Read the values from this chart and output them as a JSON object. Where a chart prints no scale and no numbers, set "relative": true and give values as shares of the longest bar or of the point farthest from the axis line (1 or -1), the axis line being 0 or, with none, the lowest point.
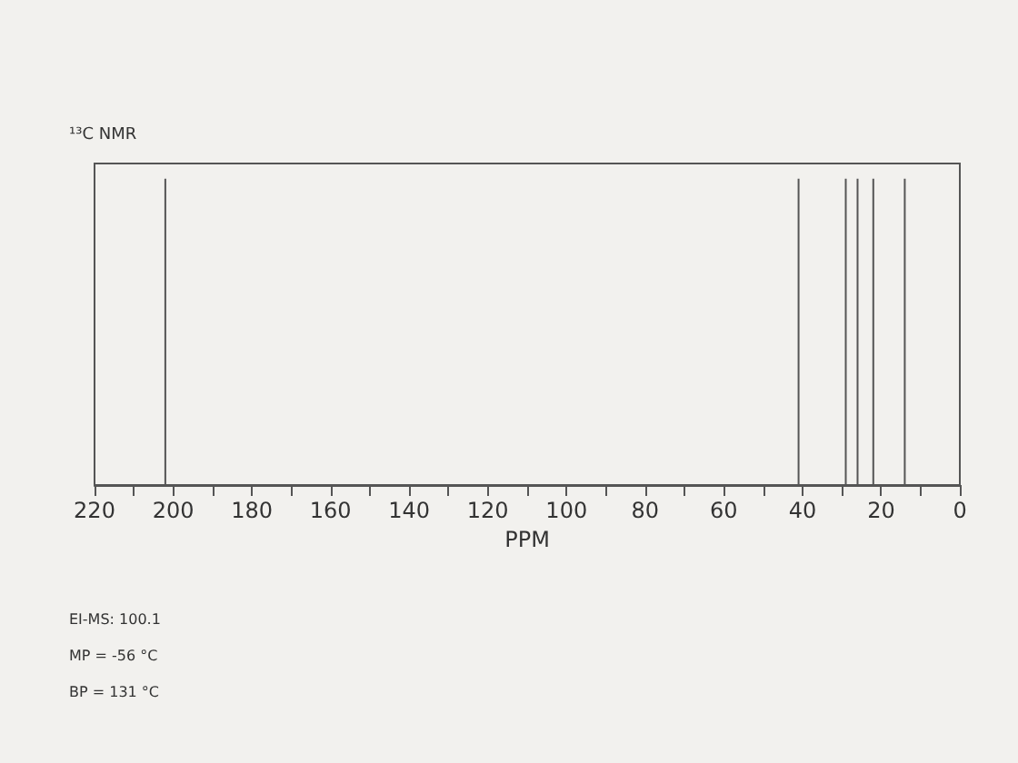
{
  "chart_data": {
    "type": "bar",
    "title": "¹³C NMR",
    "xlabel": "PPM",
    "x": [
      202,
      41,
      29,
      26,
      22,
      14
    ],
    "values": [
      1,
      1,
      1,
      1,
      1,
      1
    ],
    "relative": true,
    "color": "#555555",
    "xlim": [
      220,
      0
    ],
    "xticks": [
      220,
      {
        "value": 210,
        "label": null
      },
      200,
      {
        "value": 190,
        "label": null
      },
      180,
      {
        "value": 170,
        "label": null
      },
      160,
      {
        "value": 150,
        "label": null
      },
      140,
      {
        "value": 130,
        "label": null
      },
      120,
      {
        "value": 110,
        "label": null
      },
      100,
      {
        "value": 90,
        "label": null
      },
      80,
      {
        "value": 70,
        "label": null
      },
      60,
      {
        "value": 50,
        "label": null
      },
      40,
      {
        "value": 30,
        "label": null
      },
      20,
      {
        "value": 10,
        "label": null
      },
      0
    ],
    "tick_labels": "x",
    "grid": false,
    "annotations": [
      "EI-MS: 100.1",
      "MP = -56 °C",
      "BP = 131 °C"
    ]
  }
}
